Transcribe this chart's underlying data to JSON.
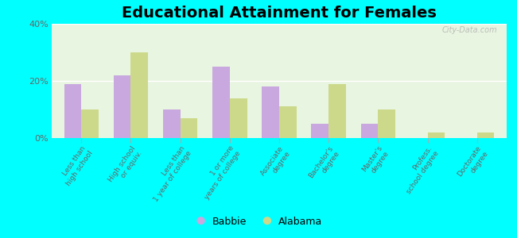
{
  "title": "Educational Attainment for Females",
  "categories": [
    "Less than\nhigh school",
    "High school\nor equiv.",
    "Less than\n1 year of college",
    "1 or more\nyears of college",
    "Associate\ndegree",
    "Bachelor's\ndegree",
    "Master's\ndegree",
    "Profess.\nschool degree",
    "Doctorate\ndegree"
  ],
  "babbie_values": [
    19,
    22,
    10,
    25,
    18,
    5,
    5,
    0,
    0
  ],
  "alabama_values": [
    10,
    30,
    7,
    14,
    11,
    19,
    10,
    2,
    2
  ],
  "babbie_color": "#c9a8e0",
  "alabama_color": "#ccd98a",
  "background_color": "#e8f5e0",
  "outer_bg": "#00ffff",
  "ylim": [
    0,
    40
  ],
  "yticks": [
    0,
    20,
    40
  ],
  "ytick_labels": [
    "0%",
    "20%",
    "40%"
  ],
  "bar_width": 0.35,
  "legend_labels": [
    "Babbie",
    "Alabama"
  ],
  "watermark": "City-Data.com",
  "title_fontsize": 14
}
